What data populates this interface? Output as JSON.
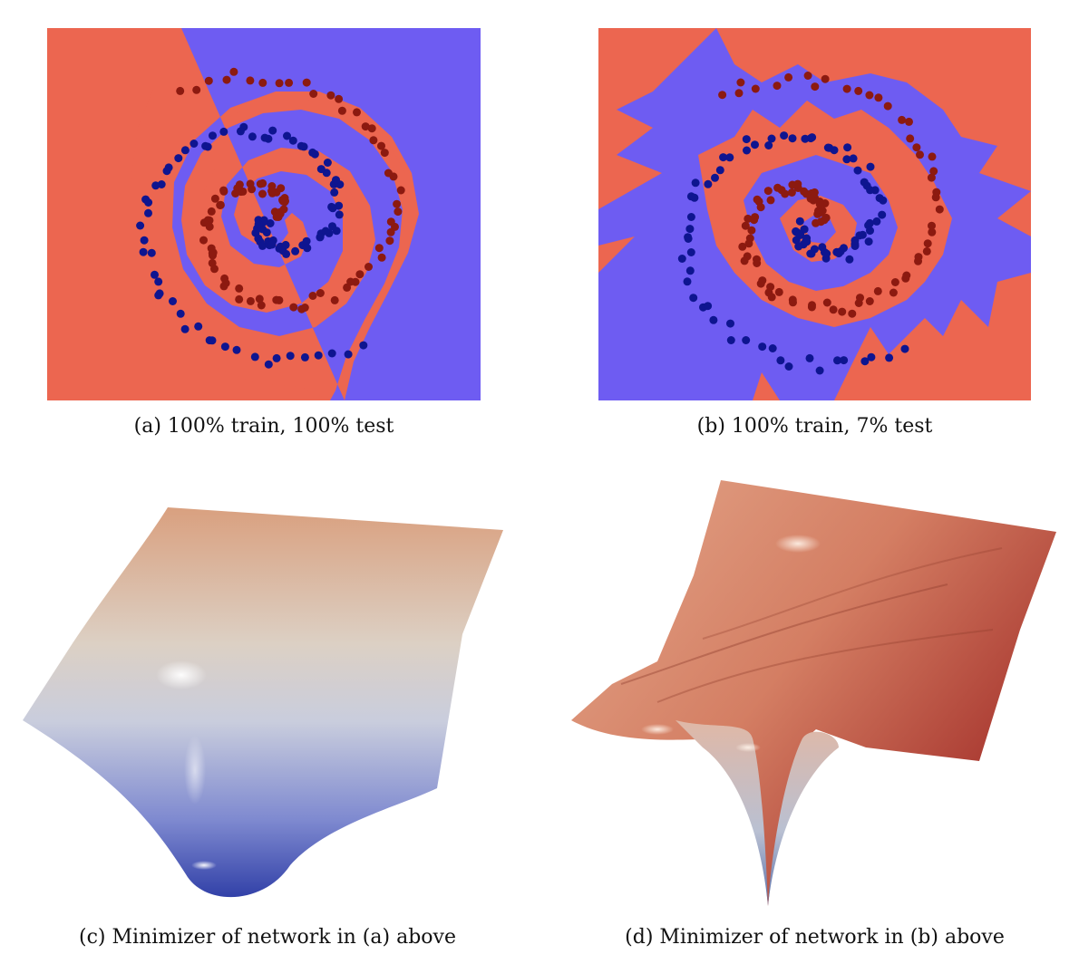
{
  "figure": {
    "panels": [
      {
        "id": "a",
        "caption": "(a) 100% train, 100% test"
      },
      {
        "id": "b",
        "caption": "(b) 100% train, 7% test"
      },
      {
        "id": "c",
        "caption": "(c) Minimizer of network in (a) above"
      },
      {
        "id": "d",
        "caption": "(d) Minimizer of network in (b) above"
      }
    ],
    "colors": {
      "region_red": "#ec6650",
      "region_blue": "#6e5cf2",
      "point_red": "#8c1a10",
      "point_blue": "#0e1590"
    }
  }
}
